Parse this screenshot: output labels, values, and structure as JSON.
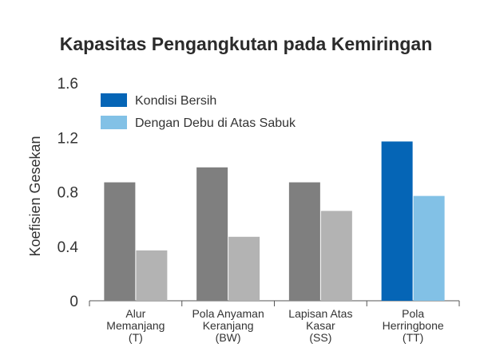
{
  "chart_data": {
    "type": "bar",
    "title": "Kapasitas Pengangkutan pada Kemiringan",
    "xlabel": "",
    "ylabel": "Koefisien Gesekan",
    "ylim": [
      0,
      1.6
    ],
    "yticks": [
      "0",
      "0.4",
      "0.8",
      "1.2",
      "1.6"
    ],
    "grid": false,
    "legend_position": "top-left",
    "categories": [
      [
        "Alur",
        "Memanjang",
        "(T)"
      ],
      [
        "Pola Anyaman",
        "Keranjang",
        "(BW)"
      ],
      [
        "Lapisan Atas",
        "Kasar",
        "(SS)"
      ],
      [
        "Pola",
        "Herringbone",
        "(TT)"
      ]
    ],
    "series": [
      {
        "name": "Kondisi Bersih",
        "values": [
          0.87,
          0.98,
          0.87,
          1.17
        ]
      },
      {
        "name": "Dengan Debu di Atas Sabuk",
        "values": [
          0.37,
          0.47,
          0.66,
          0.77
        ]
      }
    ],
    "colors": {
      "series1_default": "#7f7f7f",
      "series2_default": "#b3b3b3",
      "series1_highlight": "#0565b6",
      "series2_highlight": "#82c1e6",
      "legend1": "#0565b6",
      "legend2": "#82c1e6",
      "axis": "#555555"
    },
    "highlight_category_index": 3
  }
}
